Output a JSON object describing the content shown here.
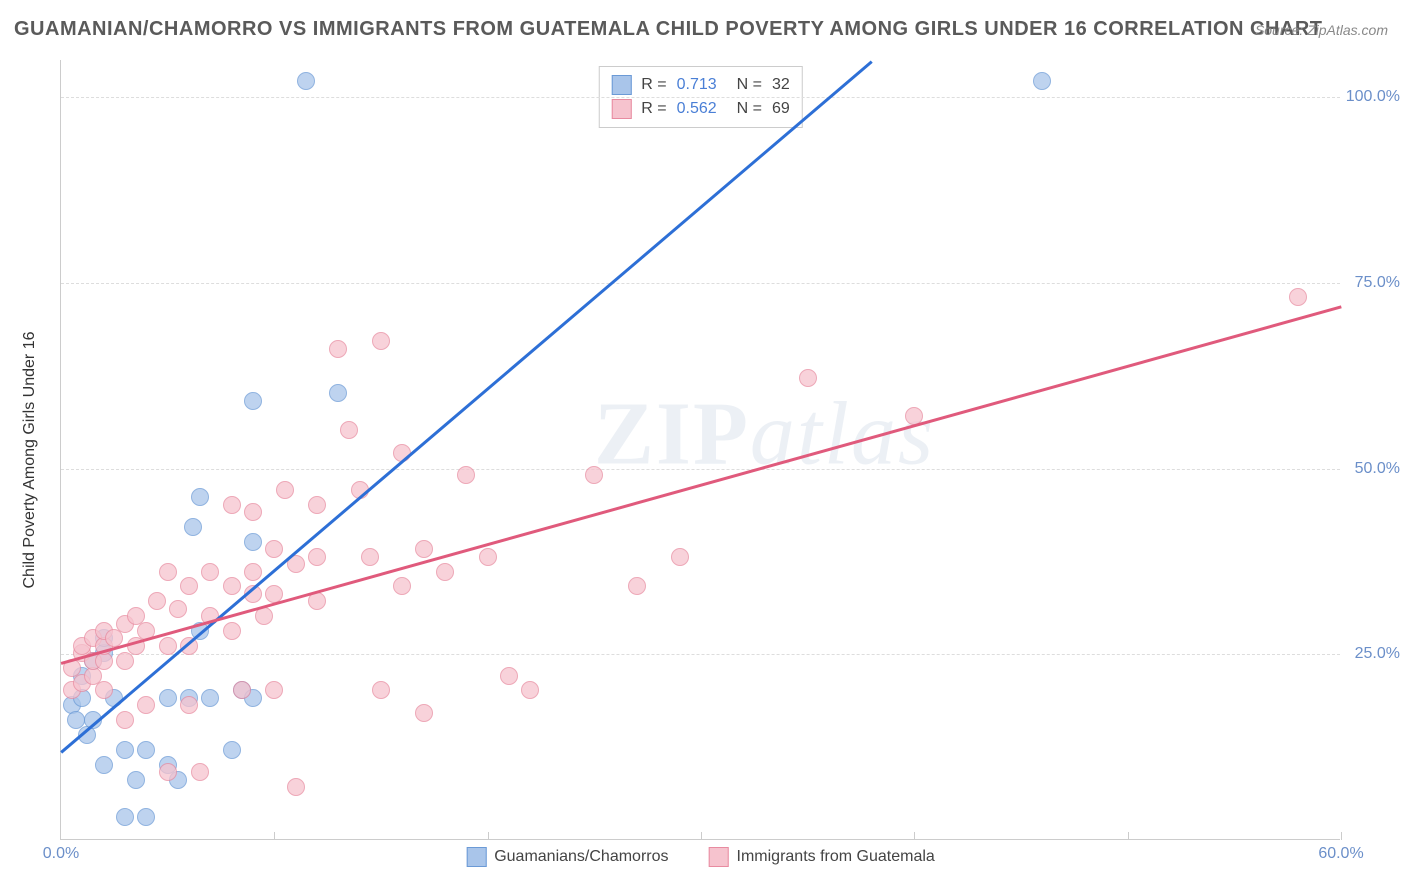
{
  "title": "GUAMANIAN/CHAMORRO VS IMMIGRANTS FROM GUATEMALA CHILD POVERTY AMONG GIRLS UNDER 16 CORRELATION CHART",
  "source": "Source: ZipAtlas.com",
  "y_axis_label": "Child Poverty Among Girls Under 16",
  "watermark_a": "ZIP",
  "watermark_b": "atlas",
  "chart": {
    "type": "scatter",
    "xlim": [
      0,
      60
    ],
    "ylim": [
      0,
      105
    ],
    "x_ticks": [
      0,
      10,
      20,
      30,
      40,
      50,
      60
    ],
    "x_tick_labels": [
      "0.0%",
      "",
      "",
      "",
      "",
      "",
      "60.0%"
    ],
    "y_ticks": [
      25,
      50,
      75,
      100
    ],
    "y_tick_labels": [
      "25.0%",
      "50.0%",
      "75.0%",
      "100.0%"
    ],
    "grid_color": "#dddddd",
    "background_color": "#ffffff",
    "axis_color": "#cccccc",
    "tick_label_color": "#6b8fc9",
    "watermark_color": "rgba(150,170,200,0.18)",
    "point_radius": 9,
    "point_opacity": 0.75,
    "series": [
      {
        "name": "Guamanians/Chamorros",
        "color_fill": "#a9c5ea",
        "color_stroke": "#6b9ad6",
        "r": 0.713,
        "n": 32,
        "trend": {
          "x1": 0,
          "y1": 12,
          "x2": 38,
          "y2": 105,
          "color": "#2d6fd6",
          "width": 2.5
        },
        "points": [
          [
            0.5,
            18
          ],
          [
            0.7,
            16
          ],
          [
            1,
            19
          ],
          [
            1,
            22
          ],
          [
            1.2,
            14
          ],
          [
            1.5,
            24
          ],
          [
            1.5,
            16
          ],
          [
            2,
            25
          ],
          [
            2,
            10
          ],
          [
            2,
            27
          ],
          [
            2.5,
            19
          ],
          [
            3,
            3
          ],
          [
            3,
            12
          ],
          [
            3.5,
            8
          ],
          [
            4,
            12
          ],
          [
            4,
            3
          ],
          [
            5,
            19
          ],
          [
            5,
            10
          ],
          [
            5.5,
            8
          ],
          [
            6,
            19
          ],
          [
            6.2,
            42
          ],
          [
            6.5,
            28
          ],
          [
            6.5,
            46
          ],
          [
            7,
            19
          ],
          [
            8,
            12
          ],
          [
            8.5,
            20
          ],
          [
            9,
            19
          ],
          [
            9,
            40
          ],
          [
            9,
            59
          ],
          [
            11.5,
            102
          ],
          [
            13,
            60
          ],
          [
            46,
            102
          ]
        ]
      },
      {
        "name": "Immigrants from Guatemala",
        "color_fill": "#f6c3ce",
        "color_stroke": "#e88ba0",
        "r": 0.562,
        "n": 69,
        "trend": {
          "x1": 0,
          "y1": 24,
          "x2": 60,
          "y2": 72,
          "color": "#e05a7c",
          "width": 2.5
        },
        "points": [
          [
            0.5,
            20
          ],
          [
            0.5,
            23
          ],
          [
            1,
            21
          ],
          [
            1,
            25
          ],
          [
            1,
            26
          ],
          [
            1.5,
            22
          ],
          [
            1.5,
            24
          ],
          [
            1.5,
            27
          ],
          [
            2,
            20
          ],
          [
            2,
            24
          ],
          [
            2,
            26
          ],
          [
            2,
            28
          ],
          [
            2.5,
            27
          ],
          [
            3,
            29
          ],
          [
            3,
            24
          ],
          [
            3,
            16
          ],
          [
            3.5,
            26
          ],
          [
            3.5,
            30
          ],
          [
            4,
            18
          ],
          [
            4,
            28
          ],
          [
            4.5,
            32
          ],
          [
            5,
            26
          ],
          [
            5,
            36
          ],
          [
            5,
            9
          ],
          [
            5.5,
            31
          ],
          [
            6,
            34
          ],
          [
            6,
            26
          ],
          [
            6,
            18
          ],
          [
            6.5,
            9
          ],
          [
            7,
            36
          ],
          [
            7,
            30
          ],
          [
            8,
            34
          ],
          [
            8,
            28
          ],
          [
            8,
            45
          ],
          [
            8.5,
            20
          ],
          [
            9,
            33
          ],
          [
            9,
            36
          ],
          [
            9,
            44
          ],
          [
            9.5,
            30
          ],
          [
            10,
            39
          ],
          [
            10,
            33
          ],
          [
            10,
            20
          ],
          [
            10.5,
            47
          ],
          [
            11,
            37
          ],
          [
            11,
            7
          ],
          [
            12,
            38
          ],
          [
            12,
            45
          ],
          [
            12,
            32
          ],
          [
            13,
            66
          ],
          [
            13.5,
            55
          ],
          [
            14,
            47
          ],
          [
            14.5,
            38
          ],
          [
            15,
            20
          ],
          [
            15,
            67
          ],
          [
            16,
            34
          ],
          [
            16,
            52
          ],
          [
            17,
            39
          ],
          [
            17,
            17
          ],
          [
            18,
            36
          ],
          [
            19,
            49
          ],
          [
            20,
            38
          ],
          [
            21,
            22
          ],
          [
            22,
            20
          ],
          [
            25,
            49
          ],
          [
            27,
            34
          ],
          [
            29,
            38
          ],
          [
            35,
            62
          ],
          [
            40,
            57
          ],
          [
            58,
            73
          ]
        ]
      }
    ],
    "legend": {
      "position": "bottom-center",
      "items": [
        {
          "label": "Guamanians/Chamorros",
          "swatch_fill": "#a9c5ea",
          "swatch_stroke": "#6b9ad6"
        },
        {
          "label": "Immigrants from Guatemala",
          "swatch_fill": "#f6c3ce",
          "swatch_stroke": "#e88ba0"
        }
      ]
    },
    "stats_box": {
      "r_label": "R  =",
      "n_label": "N  =",
      "label_color": "#444444",
      "r_value_color": "#4a7fd6"
    }
  }
}
